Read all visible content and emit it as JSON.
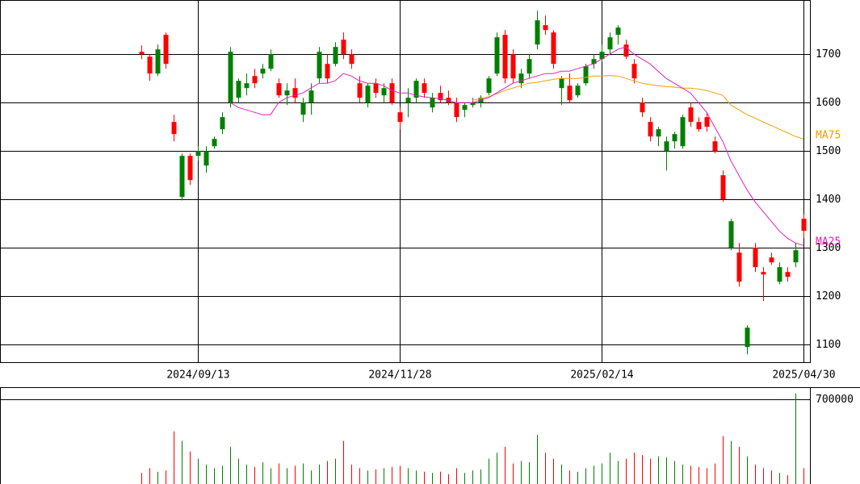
{
  "chart_data": {
    "type": "candlestick",
    "categories": [
      null,
      null,
      null,
      null,
      null,
      null,
      null,
      "2024/09/13",
      null,
      null,
      null,
      null,
      null,
      null,
      null,
      null,
      null,
      null,
      null,
      null,
      null,
      null,
      null,
      null,
      null,
      null,
      null,
      null,
      null,
      null,
      null,
      null,
      "2024/11/28",
      null,
      null,
      null,
      null,
      null,
      null,
      null,
      null,
      null,
      null,
      null,
      null,
      null,
      null,
      null,
      null,
      null,
      null,
      null,
      null,
      null,
      null,
      null,
      null,
      "2025/02/14",
      null,
      null,
      null,
      null,
      null,
      null,
      null,
      null,
      null,
      null,
      null,
      null,
      null,
      null,
      null,
      null,
      null,
      null,
      null,
      null,
      null,
      null,
      null,
      null,
      "2025/04/30"
    ],
    "open": [
      1705,
      1695,
      1660,
      1740,
      1560,
      1405,
      1490,
      1490,
      1470,
      1510,
      1545,
      1600,
      1610,
      1630,
      1655,
      1660,
      1670,
      1640,
      1615,
      1630,
      1575,
      1600,
      1650,
      1680,
      1680,
      1730,
      1700,
      1640,
      1600,
      1640,
      1615,
      1640,
      1580,
      1600,
      1610,
      1640,
      1590,
      1620,
      1610,
      1600,
      1585,
      1595,
      1600,
      1620,
      1660,
      1740,
      1700,
      1640,
      1660,
      1720,
      1760,
      1745,
      1630,
      1635,
      1615,
      1640,
      1680,
      1690,
      1710,
      1740,
      1720,
      1680,
      1600,
      1560,
      1530,
      1500,
      1520,
      1510,
      1590,
      1560,
      1570,
      1520,
      1450,
      1300,
      1290,
      1095,
      1300,
      1250,
      1280,
      1230,
      1250,
      1270,
      1360
    ],
    "high": [
      1718,
      1700,
      1720,
      1745,
      1575,
      1495,
      1495,
      1510,
      1510,
      1530,
      1580,
      1715,
      1650,
      1660,
      1670,
      1680,
      1710,
      1650,
      1640,
      1650,
      1610,
      1640,
      1715,
      1700,
      1725,
      1745,
      1710,
      1655,
      1640,
      1650,
      1640,
      1650,
      1590,
      1630,
      1650,
      1650,
      1620,
      1635,
      1625,
      1610,
      1600,
      1610,
      1615,
      1655,
      1745,
      1750,
      1710,
      1670,
      1700,
      1790,
      1780,
      1750,
      1655,
      1660,
      1640,
      1680,
      1700,
      1720,
      1745,
      1760,
      1730,
      1690,
      1610,
      1570,
      1550,
      1530,
      1540,
      1575,
      1600,
      1570,
      1580,
      1530,
      1460,
      1360,
      1310,
      1140,
      1310,
      1260,
      1290,
      1270,
      1260,
      1310,
      1370
    ],
    "low": [
      1690,
      1645,
      1655,
      1670,
      1520,
      1398,
      1430,
      1480,
      1455,
      1505,
      1535,
      1590,
      1600,
      1615,
      1630,
      1650,
      1665,
      1610,
      1595,
      1600,
      1560,
      1575,
      1640,
      1640,
      1675,
      1690,
      1670,
      1600,
      1590,
      1610,
      1600,
      1595,
      1545,
      1570,
      1600,
      1610,
      1580,
      1600,
      1595,
      1560,
      1570,
      1590,
      1590,
      1615,
      1655,
      1640,
      1640,
      1630,
      1650,
      1710,
      1740,
      1670,
      1595,
      1600,
      1610,
      1635,
      1670,
      1685,
      1700,
      1720,
      1690,
      1640,
      1570,
      1520,
      1510,
      1460,
      1505,
      1505,
      1550,
      1540,
      1540,
      1495,
      1395,
      1295,
      1220,
      1080,
      1250,
      1190,
      1265,
      1225,
      1230,
      1260,
      1320
    ],
    "close": [
      1700,
      1660,
      1710,
      1680,
      1535,
      1490,
      1440,
      1500,
      1500,
      1525,
      1570,
      1705,
      1645,
      1640,
      1640,
      1670,
      1700,
      1615,
      1625,
      1610,
      1600,
      1625,
      1705,
      1650,
      1715,
      1700,
      1680,
      1610,
      1635,
      1620,
      1630,
      1600,
      1560,
      1610,
      1645,
      1620,
      1610,
      1605,
      1600,
      1570,
      1595,
      1600,
      1610,
      1650,
      1735,
      1650,
      1650,
      1660,
      1690,
      1770,
      1750,
      1680,
      1650,
      1605,
      1635,
      1675,
      1690,
      1705,
      1735,
      1755,
      1695,
      1650,
      1580,
      1530,
      1545,
      1520,
      1535,
      1570,
      1560,
      1545,
      1550,
      1500,
      1400,
      1355,
      1230,
      1135,
      1260,
      1245,
      1270,
      1260,
      1240,
      1295,
      1335
    ],
    "volume": [
      80000,
      120000,
      90000,
      100000,
      430000,
      350000,
      260000,
      200000,
      150000,
      120000,
      140000,
      300000,
      200000,
      150000,
      130000,
      170000,
      120000,
      160000,
      120000,
      140000,
      160000,
      100000,
      150000,
      180000,
      200000,
      350000,
      150000,
      120000,
      100000,
      110000,
      120000,
      130000,
      140000,
      120000,
      100000,
      90000,
      80000,
      90000,
      70000,
      120000,
      80000,
      100000,
      110000,
      200000,
      250000,
      300000,
      160000,
      180000,
      170000,
      400000,
      250000,
      200000,
      150000,
      100000,
      90000,
      120000,
      140000,
      160000,
      250000,
      180000,
      200000,
      250000,
      230000,
      200000,
      220000,
      210000,
      180000,
      150000,
      140000,
      130000,
      120000,
      160000,
      390000,
      350000,
      300000,
      220000,
      150000,
      120000,
      100000,
      80000,
      60000,
      750000,
      120000
    ],
    "ma25": {
      "name": "MA25",
      "color": "#e020c0",
      "values": [
        null,
        null,
        null,
        null,
        null,
        null,
        null,
        null,
        null,
        null,
        null,
        1600,
        1590,
        1585,
        1580,
        1575,
        1575,
        1600,
        1610,
        1615,
        1620,
        1630,
        1640,
        1640,
        1645,
        1660,
        1655,
        1645,
        1640,
        1640,
        1635,
        1625,
        1620,
        1620,
        1615,
        1612,
        1610,
        1608,
        1605,
        1600,
        1600,
        1600,
        1605,
        1610,
        1620,
        1630,
        1640,
        1645,
        1650,
        1655,
        1660,
        1660,
        1665,
        1665,
        1670,
        1675,
        1680,
        1690,
        1700,
        1710,
        1715,
        1700,
        1690,
        1680,
        1665,
        1650,
        1640,
        1630,
        1620,
        1600,
        1580,
        1550,
        1520,
        1480,
        1450,
        1420,
        1395,
        1375,
        1355,
        1335,
        1320,
        1310,
        1305
      ]
    },
    "ma75": {
      "name": "MA75",
      "color": "#f0a000",
      "values": [
        null,
        null,
        null,
        null,
        null,
        null,
        null,
        null,
        null,
        null,
        null,
        null,
        null,
        null,
        null,
        null,
        null,
        null,
        null,
        null,
        null,
        null,
        null,
        null,
        null,
        null,
        null,
        null,
        null,
        null,
        null,
        null,
        null,
        null,
        null,
        null,
        null,
        null,
        null,
        null,
        null,
        1605,
        1608,
        1612,
        1618,
        1625,
        1630,
        1635,
        1640,
        1642,
        1645,
        1648,
        1650,
        1650,
        1650,
        1652,
        1655,
        1655,
        1656,
        1655,
        1650,
        1645,
        1640,
        1637,
        1635,
        1633,
        1632,
        1630,
        1630,
        1628,
        1625,
        1620,
        1615,
        1595,
        1585,
        1575,
        1568,
        1560,
        1553,
        1545,
        1538,
        1530,
        1525
      ]
    },
    "up_color": "#008000",
    "down_color": "#ff0000",
    "ylim": [
      1062,
      1812
    ],
    "yticks": [
      1100,
      1200,
      1300,
      1400,
      1500,
      1600,
      1700
    ],
    "volume_ylim": [
      0,
      802000
    ],
    "volume_yticks": [
      700000
    ],
    "grid": true
  }
}
